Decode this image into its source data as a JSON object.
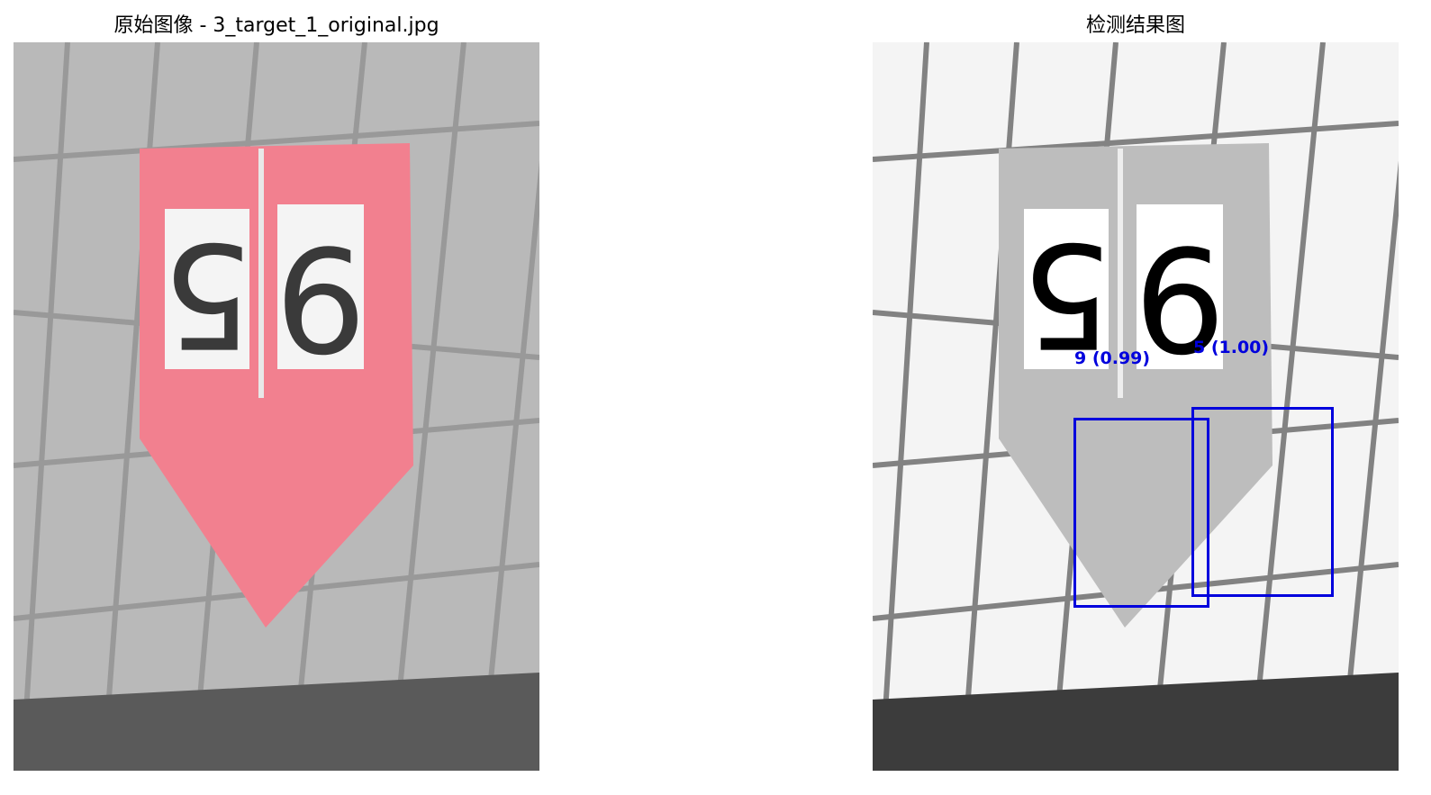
{
  "left_panel": {
    "title": "原始图像 - 3_target_1_original.jpg",
    "sign_digits": [
      "5",
      "6"
    ],
    "sign_color": "#f2808f"
  },
  "right_panel": {
    "title": "检测结果图",
    "sign_digits": [
      "5",
      "6"
    ],
    "detections": [
      {
        "label": "9 (0.99)",
        "digit": "9",
        "confidence": 0.99
      },
      {
        "label": "5 (1.00)",
        "digit": "5",
        "confidence": 1.0
      }
    ],
    "box_color": "#0000dd"
  }
}
